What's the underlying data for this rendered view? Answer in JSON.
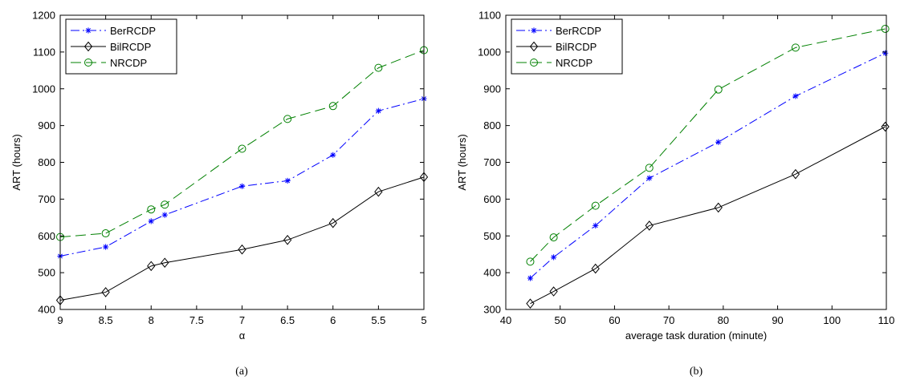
{
  "chart_data": [
    {
      "type": "line",
      "caption": "(a)",
      "xlabel": "α",
      "ylabel": "ART (hours)",
      "xlim": [
        9,
        5
      ],
      "x_reversed": true,
      "ylim": [
        400,
        1200
      ],
      "xticks": [
        "9",
        "8.5",
        "8",
        "7.5",
        "7",
        "6.5",
        "6",
        "5.5",
        "5"
      ],
      "yticks": [
        "400",
        "500",
        "600",
        "700",
        "800",
        "900",
        "1000",
        "1100",
        "1200"
      ],
      "legend_position": "top-left",
      "series": [
        {
          "name": "BerRCDP",
          "color": "#0000ff",
          "marker": "asterisk",
          "dash": "dashdot",
          "x": [
            9,
            8.5,
            8,
            7.85,
            7,
            6.5,
            6,
            5.5,
            5
          ],
          "y": [
            545,
            570,
            640,
            657,
            735,
            750,
            820,
            940,
            973
          ]
        },
        {
          "name": "BilRCDP",
          "color": "#000000",
          "marker": "diamond",
          "dash": "solid",
          "x": [
            9,
            8.5,
            8,
            7.85,
            7,
            6.5,
            6,
            5.5,
            5
          ],
          "y": [
            425,
            447,
            518,
            527,
            563,
            589,
            635,
            720,
            760
          ]
        },
        {
          "name": "NRCDP",
          "color": "#008000",
          "marker": "circle",
          "dash": "longdash",
          "x": [
            9,
            8.5,
            8,
            7.85,
            7,
            6.5,
            6,
            5.5,
            5
          ],
          "y": [
            597,
            607,
            672,
            685,
            837,
            918,
            953,
            1057,
            1105
          ]
        }
      ]
    },
    {
      "type": "line",
      "caption": "(b)",
      "xlabel": "average task duration (minute)",
      "ylabel": "ART (hours)",
      "xlim": [
        40,
        110
      ],
      "ylim": [
        300,
        1100
      ],
      "xticks": [
        "40",
        "50",
        "60",
        "70",
        "80",
        "90",
        "100",
        "110"
      ],
      "yticks": [
        "300",
        "400",
        "500",
        "600",
        "700",
        "800",
        "900",
        "1000",
        "1100"
      ],
      "legend_position": "top-left",
      "series": [
        {
          "name": "BerRCDP",
          "color": "#0000ff",
          "marker": "asterisk",
          "dash": "dashdot",
          "x": [
            44.5,
            48.8,
            56.5,
            66.4,
            79.1,
            93.3,
            109.8
          ],
          "y": [
            385,
            442,
            528,
            657,
            755,
            880,
            997
          ]
        },
        {
          "name": "BilRCDP",
          "color": "#000000",
          "marker": "diamond",
          "dash": "solid",
          "x": [
            44.5,
            48.8,
            56.5,
            66.4,
            79.1,
            93.3,
            109.8
          ],
          "y": [
            316,
            349,
            411,
            528,
            577,
            668,
            797
          ]
        },
        {
          "name": "NRCDP",
          "color": "#008000",
          "marker": "circle",
          "dash": "longdash",
          "x": [
            44.5,
            48.8,
            56.5,
            66.4,
            79.1,
            93.3,
            109.8
          ],
          "y": [
            430,
            496,
            582,
            685,
            898,
            1012,
            1063
          ]
        }
      ]
    }
  ]
}
